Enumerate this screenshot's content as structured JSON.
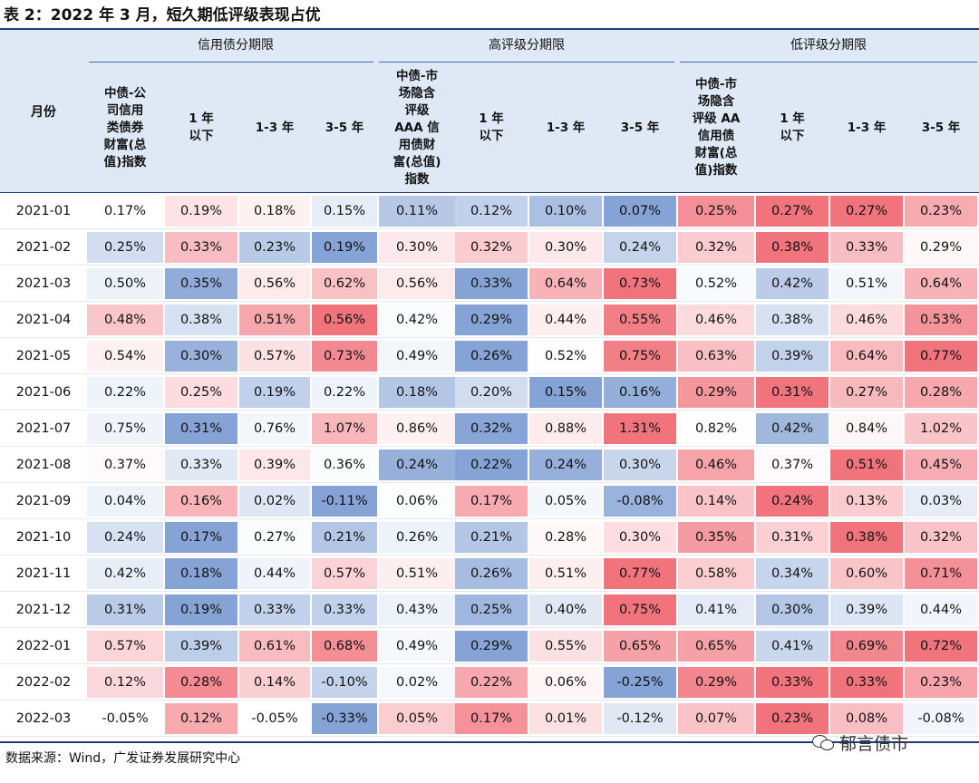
{
  "title": "表 2：2022 年 3 月，短久期低评级表现占优",
  "groups": [
    "信用债分期限",
    "高评级分期限",
    "低评级分期限"
  ],
  "month_header": "月份",
  "columns": [
    "中债-公\n司信用\n类债券\n财富(总\n值)指数",
    "1 年\n以下",
    "1-3 年",
    "3-5 年",
    "中债-市\n场隐含\n评级\nAAA 信\n用债财\n富(总值)\n指数",
    "1 年\n以下",
    "1-3 年",
    "3-5 年",
    "中债-市\n场隐含\n评级 AA\n信用债\n财富(总\n值)指数",
    "1 年\n以下",
    "1-3 年",
    "3-5 年"
  ],
  "rows": [
    {
      "month": "2021-01",
      "values": [
        "0.17%",
        "0.19%",
        "0.18%",
        "0.15%",
        "0.11%",
        "0.12%",
        "0.10%",
        "0.07%",
        "0.25%",
        "0.27%",
        "0.27%",
        "0.23%"
      ]
    },
    {
      "month": "2021-02",
      "values": [
        "0.25%",
        "0.33%",
        "0.23%",
        "0.19%",
        "0.30%",
        "0.32%",
        "0.30%",
        "0.24%",
        "0.32%",
        "0.38%",
        "0.33%",
        "0.29%"
      ]
    },
    {
      "month": "2021-03",
      "values": [
        "0.50%",
        "0.35%",
        "0.56%",
        "0.62%",
        "0.56%",
        "0.33%",
        "0.64%",
        "0.73%",
        "0.52%",
        "0.42%",
        "0.51%",
        "0.64%"
      ]
    },
    {
      "month": "2021-04",
      "values": [
        "0.48%",
        "0.38%",
        "0.51%",
        "0.56%",
        "0.42%",
        "0.29%",
        "0.44%",
        "0.55%",
        "0.46%",
        "0.38%",
        "0.46%",
        "0.53%"
      ]
    },
    {
      "month": "2021-05",
      "values": [
        "0.54%",
        "0.30%",
        "0.57%",
        "0.73%",
        "0.49%",
        "0.26%",
        "0.52%",
        "0.75%",
        "0.63%",
        "0.39%",
        "0.64%",
        "0.77%"
      ]
    },
    {
      "month": "2021-06",
      "values": [
        "0.22%",
        "0.25%",
        "0.19%",
        "0.22%",
        "0.18%",
        "0.20%",
        "0.15%",
        "0.16%",
        "0.29%",
        "0.31%",
        "0.27%",
        "0.28%"
      ]
    },
    {
      "month": "2021-07",
      "values": [
        "0.75%",
        "0.31%",
        "0.76%",
        "1.07%",
        "0.86%",
        "0.32%",
        "0.88%",
        "1.31%",
        "0.82%",
        "0.42%",
        "0.84%",
        "1.02%"
      ]
    },
    {
      "month": "2021-08",
      "values": [
        "0.37%",
        "0.33%",
        "0.39%",
        "0.36%",
        "0.24%",
        "0.22%",
        "0.24%",
        "0.30%",
        "0.46%",
        "0.37%",
        "0.51%",
        "0.45%"
      ]
    },
    {
      "month": "2021-09",
      "values": [
        "0.04%",
        "0.16%",
        "0.02%",
        "-0.11%",
        "0.06%",
        "0.17%",
        "0.05%",
        "-0.08%",
        "0.14%",
        "0.24%",
        "0.13%",
        "0.03%"
      ]
    },
    {
      "month": "2021-10",
      "values": [
        "0.24%",
        "0.17%",
        "0.27%",
        "0.21%",
        "0.26%",
        "0.21%",
        "0.28%",
        "0.30%",
        "0.35%",
        "0.31%",
        "0.38%",
        "0.32%"
      ]
    },
    {
      "month": "2021-11",
      "values": [
        "0.42%",
        "0.18%",
        "0.44%",
        "0.57%",
        "0.51%",
        "0.26%",
        "0.51%",
        "0.77%",
        "0.58%",
        "0.34%",
        "0.60%",
        "0.71%"
      ]
    },
    {
      "month": "2021-12",
      "values": [
        "0.31%",
        "0.19%",
        "0.33%",
        "0.33%",
        "0.43%",
        "0.25%",
        "0.40%",
        "0.75%",
        "0.41%",
        "0.30%",
        "0.39%",
        "0.44%"
      ]
    },
    {
      "month": "2022-01",
      "values": [
        "0.57%",
        "0.39%",
        "0.61%",
        "0.68%",
        "0.49%",
        "0.29%",
        "0.55%",
        "0.65%",
        "0.65%",
        "0.41%",
        "0.69%",
        "0.72%"
      ]
    },
    {
      "month": "2022-02",
      "values": [
        "0.12%",
        "0.28%",
        "0.14%",
        "-0.10%",
        "0.02%",
        "0.22%",
        "0.06%",
        "-0.25%",
        "0.29%",
        "0.33%",
        "0.33%",
        "0.23%"
      ]
    },
    {
      "month": "2022-03",
      "values": [
        "-0.05%",
        "0.12%",
        "-0.05%",
        "-0.33%",
        "0.05%",
        "0.17%",
        "0.01%",
        "-0.12%",
        "0.07%",
        "0.23%",
        "0.08%",
        "-0.08%"
      ]
    }
  ],
  "source": "数据来源：Wind，广发证券发展研究中心",
  "watermark": "郁言债市",
  "colors": {
    "low": "#6a8fcc",
    "mid": "#ffffff",
    "high": "#ee5560"
  }
}
